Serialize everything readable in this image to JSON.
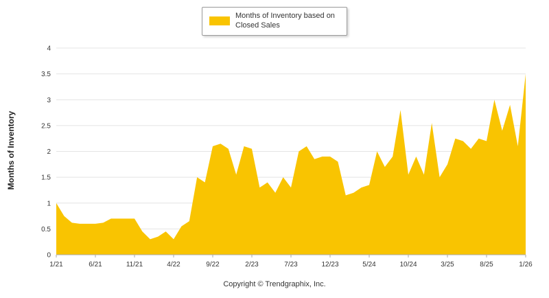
{
  "legend": {
    "label": "Months of Inventory based on Closed Sales",
    "swatch_color": "#F9C401"
  },
  "footer": {
    "copyright": "Copyright © Trendgraphix, Inc."
  },
  "colors": {
    "area_fill": "#F9C401",
    "gridline": "#e4e4e4",
    "axis_line": "#aaaaaa",
    "text": "#333333"
  },
  "chart_data": {
    "type": "area",
    "title": "",
    "xlabel": "",
    "ylabel": "Months of Inventory",
    "series_name": "Months of Inventory based on Closed Sales",
    "ylim": [
      0,
      4
    ],
    "y_tick_step": 0.5,
    "grid": true,
    "legend_position": "top-center",
    "fill_color": "#F9C401",
    "x_tick_labels": [
      "1/21",
      "6/21",
      "11/21",
      "4/22",
      "9/22",
      "2/23",
      "7/23",
      "12/23",
      "5/24",
      "10/24",
      "3/25",
      "8/25",
      "1/26"
    ],
    "x_tick_every": 5,
    "x": [
      "1/21",
      "2/21",
      "3/21",
      "4/21",
      "5/21",
      "6/21",
      "7/21",
      "8/21",
      "9/21",
      "10/21",
      "11/21",
      "12/21",
      "1/22",
      "2/22",
      "3/22",
      "4/22",
      "5/22",
      "6/22",
      "7/22",
      "8/22",
      "9/22",
      "10/22",
      "11/22",
      "12/22",
      "1/23",
      "2/23",
      "3/23",
      "4/23",
      "5/23",
      "6/23",
      "7/23",
      "8/23",
      "9/23",
      "10/23",
      "11/23",
      "12/23",
      "1/24",
      "2/24",
      "3/24",
      "4/24",
      "5/24",
      "6/24",
      "7/24",
      "8/24",
      "9/24",
      "10/24",
      "11/24",
      "12/24",
      "1/25",
      "2/25",
      "3/25",
      "4/25",
      "5/25",
      "6/25",
      "7/25",
      "8/25",
      "9/25",
      "10/25",
      "11/25",
      "12/25",
      "1/26"
    ],
    "values": [
      1.0,
      0.75,
      0.62,
      0.6,
      0.6,
      0.6,
      0.62,
      0.7,
      0.7,
      0.7,
      0.7,
      0.45,
      0.3,
      0.35,
      0.45,
      0.3,
      0.55,
      0.65,
      1.5,
      1.4,
      2.1,
      2.15,
      2.05,
      1.55,
      2.1,
      2.05,
      1.3,
      1.4,
      1.2,
      1.5,
      1.3,
      2.0,
      2.1,
      1.85,
      1.9,
      1.9,
      1.8,
      1.15,
      1.2,
      1.3,
      1.35,
      2.0,
      1.7,
      1.9,
      2.8,
      1.55,
      1.9,
      1.55,
      2.55,
      1.5,
      1.75,
      2.25,
      2.2,
      2.05,
      2.25,
      2.2,
      3.0,
      2.4,
      2.9,
      2.1,
      3.5
    ]
  }
}
